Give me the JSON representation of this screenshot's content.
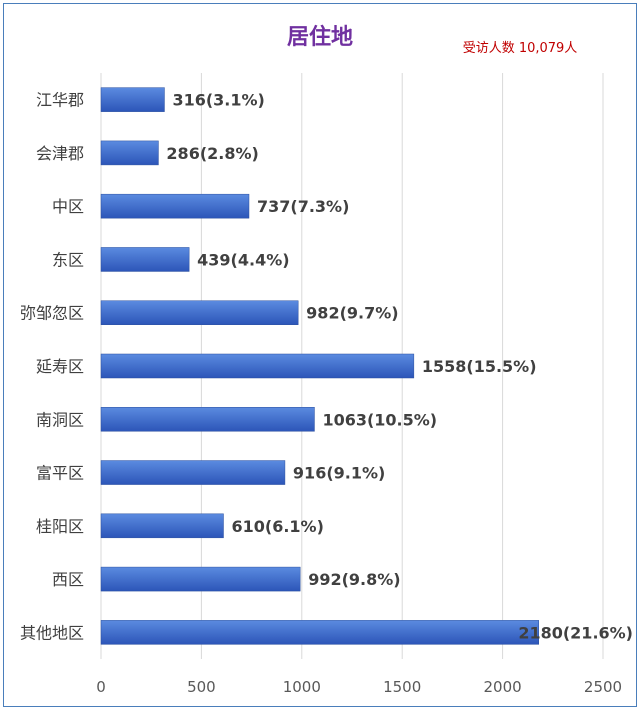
{
  "colors": {
    "bar_top": "#5b8be0",
    "bar_bottom": "#2c55b8",
    "title": "#7030a0",
    "note": "#c00000",
    "grid": "#d9d9d9",
    "frame": "#4a7ebb"
  },
  "chart_data": {
    "type": "bar",
    "orientation": "horizontal",
    "title": "居住地",
    "note": "受访人数 10,079人",
    "categories": [
      "江华郡",
      "会津郡",
      "中区",
      "东区",
      "弥邹忽区",
      "延寿区",
      "南洞区",
      "富平区",
      "桂阳区",
      "西区",
      "其他地区"
    ],
    "values": [
      316,
      286,
      737,
      439,
      982,
      1558,
      1063,
      916,
      610,
      992,
      2180
    ],
    "data_labels": [
      "316(3.1%)",
      "286(2.8%)",
      "737(7.3%)",
      "439(4.4%)",
      "982(9.7%)",
      "1558(15.5%)",
      "1063(10.5%)",
      "916(9.1%)",
      "610(6.1%)",
      "992(9.8%)",
      "2180(21.6%)"
    ],
    "x_ticks": [
      "0",
      "500",
      "1000",
      "1500",
      "2000",
      "2500"
    ],
    "xlim": [
      0,
      2500
    ],
    "grid": true,
    "legend": false
  }
}
